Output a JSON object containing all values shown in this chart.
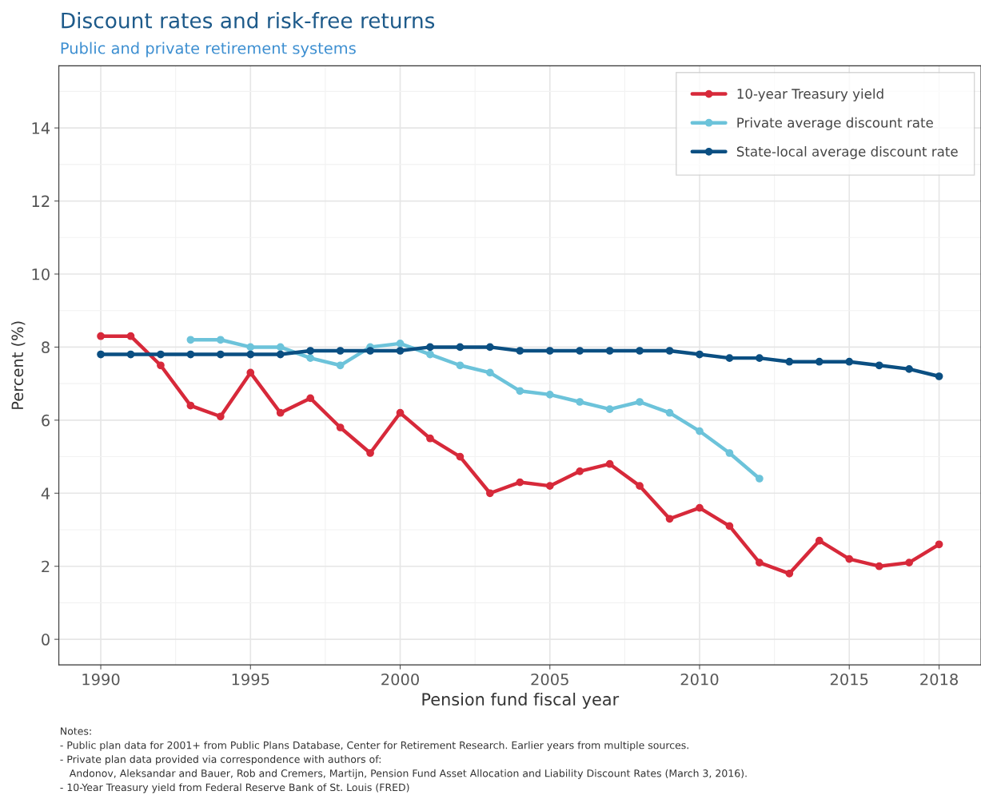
{
  "chart_data": {
    "type": "line",
    "title": "Discount rates and risk-free returns",
    "subtitle": "Public and private retirement systems",
    "xlabel": "Pension fund fiscal year",
    "ylabel": "Percent (%)",
    "x": [
      1990,
      1991,
      1992,
      1993,
      1994,
      1995,
      1996,
      1997,
      1998,
      1999,
      2000,
      2001,
      2002,
      2003,
      2004,
      2005,
      2006,
      2007,
      2008,
      2009,
      2010,
      2011,
      2012,
      2013,
      2014,
      2015,
      2016,
      2017,
      2018
    ],
    "series": [
      {
        "name": "10-year Treasury yield",
        "color": "#d7293a",
        "values": [
          8.3,
          8.3,
          7.5,
          6.4,
          6.1,
          7.3,
          6.2,
          6.6,
          5.8,
          5.1,
          6.2,
          5.5,
          5.0,
          4.0,
          4.3,
          4.2,
          4.6,
          4.8,
          4.2,
          3.3,
          3.6,
          3.1,
          2.1,
          1.8,
          2.7,
          2.2,
          2.0,
          2.1,
          2.6
        ]
      },
      {
        "name": "Private average discount rate",
        "color": "#6cc3da",
        "values": [
          null,
          null,
          null,
          8.2,
          8.2,
          8.0,
          8.0,
          7.7,
          7.5,
          8.0,
          8.1,
          7.8,
          7.5,
          7.3,
          6.8,
          6.7,
          6.5,
          6.3,
          6.5,
          6.2,
          5.7,
          5.1,
          4.4,
          null,
          null,
          null,
          null,
          null,
          null
        ]
      },
      {
        "name": "State-local average discount rate",
        "color": "#0b4f82",
        "values": [
          7.8,
          7.8,
          7.8,
          7.8,
          7.8,
          7.8,
          7.8,
          7.9,
          7.9,
          7.9,
          7.9,
          8.0,
          8.0,
          8.0,
          7.9,
          7.9,
          7.9,
          7.9,
          7.9,
          7.9,
          7.8,
          7.7,
          7.7,
          7.6,
          7.6,
          7.6,
          7.5,
          7.4,
          7.2
        ]
      }
    ],
    "xlim": [
      1988.6,
      2019.4
    ],
    "ylim": [
      -0.7,
      15.7
    ],
    "xticks": [
      1990,
      1995,
      2000,
      2005,
      2010,
      2015,
      2018
    ],
    "yticks": [
      0,
      2,
      4,
      6,
      8,
      10,
      12,
      14
    ],
    "grid": true,
    "legend": "top right",
    "marker": "circle",
    "line_style": "solid",
    "annotations": [
      "Notes:",
      "- Public plan data for 2001+ from Public Plans Database, Center for Retirement Research. Earlier years from multiple sources.",
      "- Private plan data provided via correspondence with authors of:",
      "   Andonov, Aleksandar and Bauer, Rob and Cremers, Martijn, Pension Fund Asset Allocation and Liability Discount Rates (March 3, 2016).",
      "- 10-Year Treasury yield from Federal Reserve Bank of St. Louis (FRED)"
    ]
  }
}
